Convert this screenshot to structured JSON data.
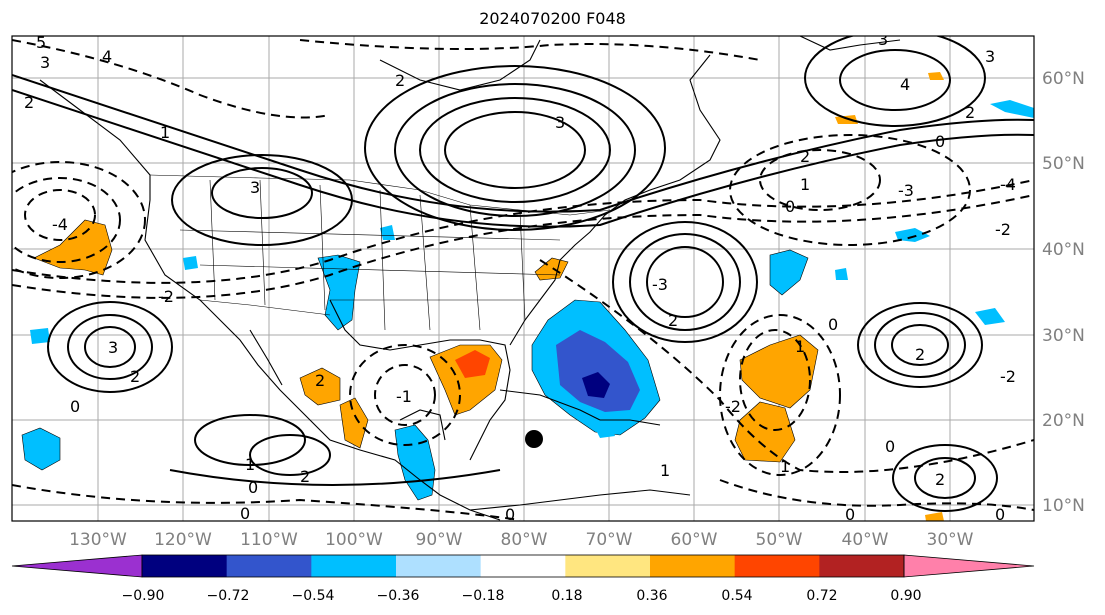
{
  "title": "2024070200 F048",
  "lat_labels": [
    "60°N",
    "50°N",
    "40°N",
    "30°N",
    "20°N",
    "10°N"
  ],
  "lon_labels": [
    "130°W",
    "120°W",
    "110°W",
    "100°W",
    "90°W",
    "80°W",
    "70°W",
    "60°W",
    "50°W",
    "40°W",
    "30°W"
  ],
  "colorbar": {
    "ticks": [
      "−0.90",
      "−0.72",
      "−0.54",
      "−0.36",
      "−0.18",
      "0.18",
      "0.36",
      "0.54",
      "0.72",
      "0.90"
    ],
    "colors": [
      "#9b30d0",
      "#00007f",
      "#3355cc",
      "#00bfff",
      "#aee0ff",
      "#ffffff",
      "#ffe680",
      "#ffa500",
      "#ff4500",
      "#b22222",
      "#ff80aa"
    ]
  },
  "contour_labels": [
    "5",
    "4",
    "3",
    "2",
    "1",
    "0",
    "-1",
    "-2",
    "-3",
    "-4"
  ],
  "marker": "storm-center-dot"
}
